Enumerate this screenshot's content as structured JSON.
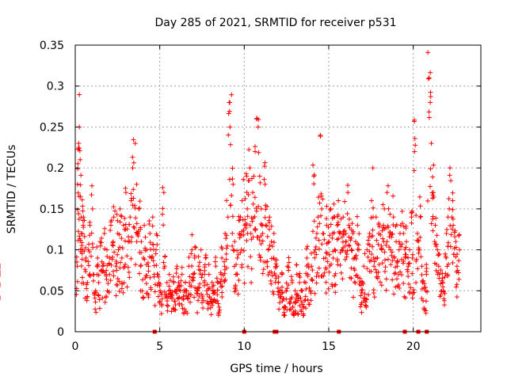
{
  "chart_data": {
    "type": "scatter",
    "title": "Day 285 of 2021, SRMTID for receiver p531",
    "xlabel": "GPS time / hours",
    "ylabel": "SRMTID / TECUs",
    "xlim": [
      0,
      24
    ],
    "ylim": [
      0,
      0.35
    ],
    "x_ticks": [
      0,
      5,
      10,
      15,
      20
    ],
    "x_tick_labels": [
      "0",
      "5",
      "10",
      "15",
      "20"
    ],
    "y_ticks": [
      0,
      0.05,
      0.1,
      0.15,
      0.2,
      0.25,
      0.3,
      0.35
    ],
    "y_tick_labels": [
      "0",
      "0.05",
      "0.1",
      "0.15",
      "0.2",
      "0.25",
      "0.3",
      "0.35"
    ],
    "grid": true,
    "marker": "plus",
    "color": "#ff0000",
    "series": [
      {
        "name": "SRMTID",
        "x": [
          0.0,
          0.05,
          0.1,
          0.15,
          0.2,
          0.25,
          0.3,
          0.35,
          0.4,
          0.45,
          0.5,
          0.6,
          0.7,
          0.8,
          0.9,
          1.0,
          1.1,
          1.2,
          1.3,
          1.4,
          1.5,
          1.6,
          1.7,
          1.8,
          1.9,
          2.0,
          2.1,
          2.2,
          2.3,
          2.4,
          2.5,
          2.6,
          2.7,
          2.8,
          2.9,
          3.0,
          3.1,
          3.2,
          3.3,
          3.4,
          3.5,
          3.6,
          3.7,
          3.8,
          3.9,
          4.0,
          4.1,
          4.2,
          4.3,
          4.4,
          4.5,
          4.6,
          4.7,
          4.8,
          4.9,
          5.0,
          5.1,
          5.2,
          5.3,
          5.4,
          5.5,
          5.6,
          5.7,
          5.8,
          5.9,
          6.0,
          6.1,
          6.2,
          6.3,
          6.4,
          6.5,
          6.6,
          6.7,
          6.8,
          6.9,
          7.0,
          7.1,
          7.2,
          7.3,
          7.4,
          7.5,
          7.6,
          7.7,
          7.8,
          7.9,
          8.0,
          8.1,
          8.2,
          8.3,
          8.4,
          8.5,
          8.6,
          8.7,
          8.8,
          8.9,
          9.0,
          9.1,
          9.2,
          9.3,
          9.4,
          9.5,
          9.6,
          9.7,
          9.8,
          9.9,
          10.0,
          10.1,
          10.2,
          10.3,
          10.4,
          10.5,
          10.6,
          10.7,
          10.8,
          10.9,
          11.0,
          11.1,
          11.2,
          11.3,
          11.4,
          11.5,
          11.6,
          11.7,
          11.8,
          11.9,
          12.0,
          12.1,
          12.2,
          12.3,
          12.4,
          12.5,
          12.6,
          12.7,
          12.8,
          12.9,
          13.0,
          13.1,
          13.2,
          13.3,
          13.4,
          13.5,
          13.6,
          13.7,
          13.8,
          13.9,
          14.0,
          14.1,
          14.2,
          14.3,
          14.4,
          14.5,
          14.6,
          14.7,
          14.8,
          14.9,
          15.0,
          15.1,
          15.2,
          15.3,
          15.4,
          15.5,
          15.6,
          15.7,
          15.8,
          15.9,
          16.0,
          16.1,
          16.2,
          16.3,
          16.4,
          16.5,
          16.6,
          16.7,
          16.8,
          16.9,
          17.0,
          17.1,
          17.2,
          17.3,
          17.4,
          17.5,
          17.6,
          17.7,
          17.8,
          17.9,
          18.0,
          18.1,
          18.2,
          18.3,
          18.4,
          18.5,
          18.6,
          18.7,
          18.8,
          18.9,
          19.0,
          19.1,
          19.2,
          19.3,
          19.4,
          19.5,
          19.6,
          19.7,
          19.8,
          19.9,
          20.0,
          20.1,
          20.2,
          20.3,
          20.4,
          20.5,
          20.6,
          20.7,
          20.8,
          20.9,
          21.0,
          21.1,
          21.2,
          21.3,
          21.4,
          21.5,
          21.6,
          21.7,
          21.8,
          21.9,
          22.0,
          22.1,
          22.2,
          22.3,
          22.4,
          22.5,
          22.6,
          22.7,
          22.8,
          22.9,
          0.08,
          0.18,
          0.23,
          0.25,
          0.21,
          0.12,
          0.1,
          0.14,
          0.13,
          0.09,
          0.06,
          0.1,
          0.13,
          0.15,
          0.07,
          0.05,
          0.09,
          0.06,
          0.11,
          0.08,
          0.12,
          0.07,
          0.1,
          0.09,
          0.13,
          0.11,
          0.14,
          0.08,
          0.12,
          0.1,
          0.15,
          0.09,
          0.13,
          0.17,
          0.11,
          0.14,
          0.16,
          0.2,
          0.23,
          0.18,
          0.12,
          0.15,
          0.11,
          0.09,
          0.13,
          0.1,
          0.08,
          0.12,
          0.09,
          0.14,
          0.07,
          0.1,
          0.06,
          0.05,
          0.04,
          0.17,
          0.08,
          0.06,
          0.05,
          0.07,
          0.04,
          0.06,
          0.05,
          0.08,
          0.06,
          0.05,
          0.07,
          0.04,
          0.06,
          0.05,
          0.08,
          0.06,
          0.1,
          0.07,
          0.09,
          0.05,
          0.08,
          0.1,
          0.07,
          0.06,
          0.09,
          0.05,
          0.07,
          0.04,
          0.06,
          0.05,
          0.08,
          0.06,
          0.03,
          0.07,
          0.09,
          0.08,
          0.12,
          0.14,
          0.28,
          0.25,
          0.18,
          0.1,
          0.07,
          0.09,
          0.12,
          0.14,
          0.16,
          0.13,
          0.19,
          0.15,
          0.2,
          0.12,
          0.17,
          0.22,
          0.26,
          0.25,
          0.19,
          0.15,
          0.12,
          0.18,
          0.13,
          0.1,
          0.14,
          0.11,
          0.09,
          0.12,
          0.08,
          0.06,
          0.05,
          0.07,
          0.04,
          0.03,
          0.05,
          0.08,
          0.04,
          0.06,
          0.03,
          0.05,
          0.07,
          0.04,
          0.06,
          0.05,
          0.03,
          0.06,
          0.09,
          0.07,
          0.05,
          0.08,
          0.19,
          0.1,
          0.12,
          0.14,
          0.24,
          0.15,
          0.12,
          0.09,
          0.13,
          0.11,
          0.15,
          0.12,
          0.14,
          0.1,
          0.13,
          0.16,
          0.12,
          0.1,
          0.14,
          0.11,
          0.17,
          0.13,
          0.1,
          0.12,
          0.09,
          0.11,
          0.13,
          0.1,
          0.05,
          0.06,
          0.08,
          0.04,
          0.1,
          0.12,
          0.16,
          0.2,
          0.08,
          0.14,
          0.09,
          0.12,
          0.1,
          0.13,
          0.15,
          0.11,
          0.17,
          0.12,
          0.1,
          0.14,
          0.09,
          0.11,
          0.08,
          0.1,
          0.13,
          0.12,
          0.09,
          0.11,
          0.08,
          0.1,
          0.14,
          0.09,
          0.22,
          0.12,
          0.1,
          0.14,
          0.08,
          0.06,
          0.05,
          0.07,
          0.31,
          0.28,
          0.23,
          0.17,
          0.13,
          0.1,
          0.08,
          0.07,
          0.06,
          0.05,
          0.09,
          0.12,
          0.15,
          0.2,
          0.16,
          0.13,
          0.11,
          0.08,
          0.1,
          0.07
        ]
      },
      {
        "name": "data-gap-markers",
        "x": [
          4.7,
          10.0,
          11.8,
          11.9,
          15.6,
          19.5,
          20.3,
          20.8
        ],
        "y": [
          0,
          0,
          0,
          0,
          0,
          0,
          0,
          0
        ],
        "marker": "square"
      }
    ]
  }
}
